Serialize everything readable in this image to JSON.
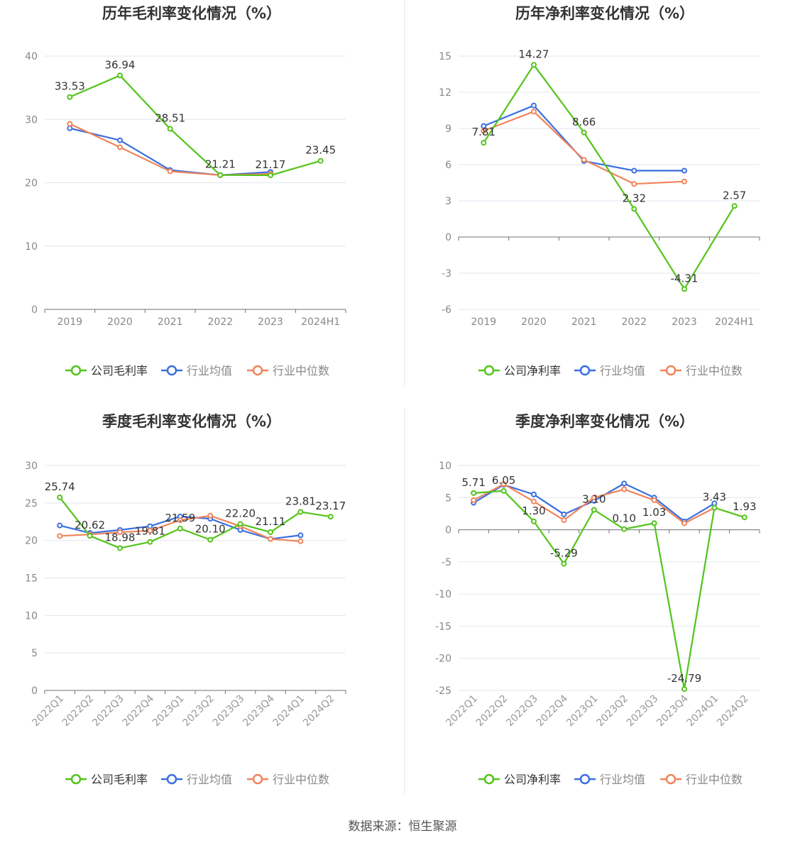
{
  "source_text": "数据来源：恒生聚源",
  "colors": {
    "company": "#52c41a",
    "avg": "#3a6fe0",
    "median": "#f0845a",
    "axis": "#888888",
    "grid": "#e3e6ef",
    "title": "#333333"
  },
  "chart_data": [
    {
      "type": "line",
      "title": "历年毛利率变化情况（%）",
      "categories": [
        "2019",
        "2020",
        "2021",
        "2022",
        "2023",
        "2024H1"
      ],
      "ylim": [
        0,
        40
      ],
      "yticks": [
        0,
        10,
        20,
        30,
        40
      ],
      "rotate_labels": false,
      "series": [
        {
          "name": "公司毛利率",
          "role": "company",
          "values": [
            33.53,
            36.94,
            28.51,
            21.21,
            21.17,
            23.45
          ],
          "labels": [
            "33.53",
            "36.94",
            "28.51",
            "21.21",
            "21.17",
            "23.45"
          ]
        },
        {
          "name": "行业均值",
          "role": "avg",
          "values": [
            28.6,
            26.7,
            22.0,
            21.2,
            21.7,
            null
          ]
        },
        {
          "name": "行业中位数",
          "role": "median",
          "values": [
            29.3,
            25.6,
            21.8,
            21.2,
            21.4,
            null
          ]
        }
      ],
      "legend": "bottom-center"
    },
    {
      "type": "line",
      "title": "历年净利率变化情况（%）",
      "categories": [
        "2019",
        "2020",
        "2021",
        "2022",
        "2023",
        "2024H1"
      ],
      "ylim": [
        -6,
        15
      ],
      "yticks": [
        -6,
        -3,
        0,
        3,
        6,
        9,
        12,
        15
      ],
      "rotate_labels": false,
      "series": [
        {
          "name": "公司净利率",
          "role": "company",
          "values": [
            7.81,
            14.27,
            8.66,
            2.32,
            -4.31,
            2.57
          ],
          "labels": [
            "7.81",
            "14.27",
            "8.66",
            "2.32",
            "-4.31",
            "2.57"
          ]
        },
        {
          "name": "行业均值",
          "role": "avg",
          "values": [
            9.2,
            10.9,
            6.3,
            5.5,
            5.5,
            null
          ]
        },
        {
          "name": "行业中位数",
          "role": "median",
          "values": [
            8.8,
            10.4,
            6.4,
            4.4,
            4.6,
            null
          ]
        }
      ],
      "legend": "bottom-center"
    },
    {
      "type": "line",
      "title": "季度毛利率变化情况（%）",
      "categories": [
        "2022Q1",
        "2022Q2",
        "2022Q3",
        "2022Q4",
        "2023Q1",
        "2023Q2",
        "2023Q3",
        "2023Q4",
        "2024Q1",
        "2024Q2"
      ],
      "ylim": [
        0,
        30
      ],
      "yticks": [
        0,
        5,
        10,
        15,
        20,
        25,
        30
      ],
      "rotate_labels": true,
      "series": [
        {
          "name": "公司毛利率",
          "role": "company",
          "values": [
            25.74,
            20.62,
            18.98,
            19.81,
            21.59,
            20.1,
            22.2,
            21.11,
            23.81,
            23.17
          ],
          "labels": [
            "25.74",
            "20.62",
            "18.98",
            "19.81",
            "21.59",
            "20.10",
            "22.20",
            "21.11",
            "23.81",
            "23.17"
          ]
        },
        {
          "name": "行业均值",
          "role": "avg",
          "values": [
            22.0,
            21.0,
            21.4,
            21.9,
            23.2,
            22.9,
            21.4,
            20.2,
            20.7,
            null
          ]
        },
        {
          "name": "行业中位数",
          "role": "median",
          "values": [
            20.6,
            20.8,
            21.1,
            21.3,
            22.7,
            23.3,
            21.9,
            20.2,
            19.9,
            null
          ]
        }
      ],
      "legend": "bottom-center"
    },
    {
      "type": "line",
      "title": "季度净利率变化情况（%）",
      "categories": [
        "2022Q1",
        "2022Q2",
        "2022Q3",
        "2022Q4",
        "2023Q1",
        "2023Q2",
        "2023Q3",
        "2023Q4",
        "2024Q1",
        "2024Q2"
      ],
      "ylim": [
        -25,
        10
      ],
      "yticks": [
        -25,
        -20,
        -15,
        -10,
        -5,
        0,
        5,
        10
      ],
      "rotate_labels": true,
      "series": [
        {
          "name": "公司净利率",
          "role": "company",
          "values": [
            5.71,
            6.05,
            1.3,
            -5.29,
            3.1,
            0.1,
            1.03,
            -24.79,
            3.43,
            1.93
          ],
          "labels": [
            "5.71",
            "6.05",
            "1.30",
            "-5.29",
            "3.10",
            "0.10",
            "1.03",
            "-24.79",
            "3.43",
            "1.93"
          ]
        },
        {
          "name": "行业均值",
          "role": "avg",
          "values": [
            4.2,
            7.0,
            5.5,
            2.4,
            4.5,
            7.2,
            5.0,
            1.3,
            4.1,
            null
          ]
        },
        {
          "name": "行业中位数",
          "role": "median",
          "values": [
            4.6,
            7.1,
            4.4,
            1.5,
            5.0,
            6.3,
            4.6,
            1.0,
            3.4,
            null
          ]
        }
      ],
      "legend": "bottom-center"
    }
  ]
}
